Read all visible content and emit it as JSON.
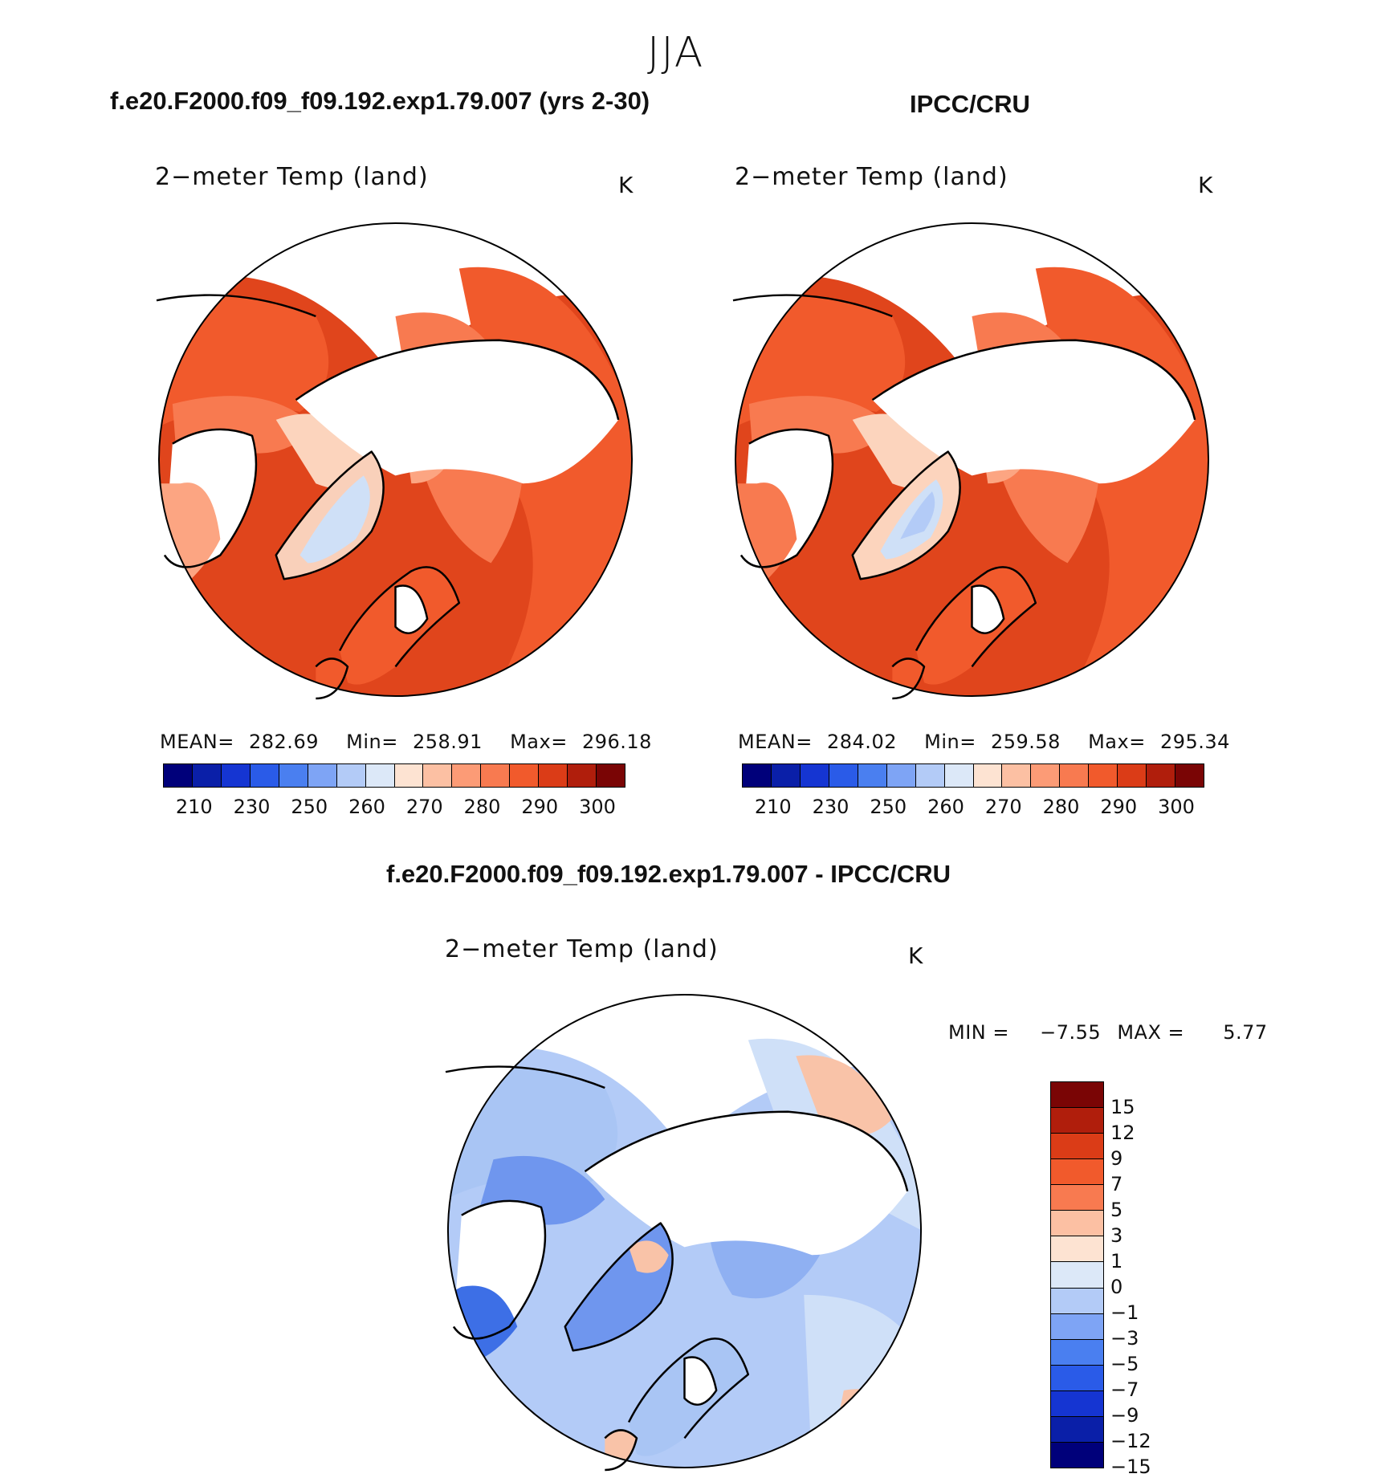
{
  "figure": {
    "season": "JJA"
  },
  "panels": [
    {
      "id": "model",
      "header": "f.e20.F2000.f09_f09.192.exp1.79.007 (yrs 2-30)",
      "title": "2−meter Temp (land)",
      "units": "K",
      "stats": {
        "mean_label": "MEAN=",
        "mean": "282.69",
        "min_label": "Min=",
        "min": "258.91",
        "max_label": "Max=",
        "max": "296.18"
      }
    },
    {
      "id": "obs",
      "header": "IPCC/CRU",
      "title": "2−meter Temp (land)",
      "units": "K",
      "stats": {
        "mean_label": "MEAN=",
        "mean": "284.02",
        "min_label": "Min=",
        "min": "259.58",
        "max_label": "Max=",
        "max": "295.34"
      }
    },
    {
      "id": "diff",
      "header": "f.e20.F2000.f09_f09.192.exp1.79.007 - IPCC/CRU",
      "title": "2−meter Temp (land)",
      "units": "K",
      "minmax": {
        "min_label": "MIN =",
        "min": "−7.55",
        "max_label": "MAX =",
        "max": "5.77"
      }
    }
  ],
  "colorbar_abs": {
    "colors": [
      "#00007a",
      "#0a1fa8",
      "#1535d2",
      "#2a5be8",
      "#4a7ff0",
      "#7ea4f5",
      "#b3cbf7",
      "#dce8f8",
      "#fde3d2",
      "#fcc0a3",
      "#fc9b76",
      "#f87a50",
      "#f15a2c",
      "#db3c17",
      "#b01e0c",
      "#7a0505"
    ],
    "tick_labels": [
      "210",
      "230",
      "250",
      "260",
      "270",
      "280",
      "290",
      "300"
    ]
  },
  "colorbar_diff": {
    "colors": [
      "#7a0505",
      "#b01e0c",
      "#db3c17",
      "#f15a2c",
      "#f87a50",
      "#fcc0a3",
      "#fde3d2",
      "#dce8f8",
      "#b3cbf7",
      "#7ea4f5",
      "#4a7ff0",
      "#2a5be8",
      "#1535d2",
      "#0a1fa8",
      "#00007a"
    ],
    "tick_labels": [
      "15",
      "12",
      "9",
      "7",
      "5",
      "3",
      "1",
      "0",
      "−1",
      "−3",
      "−5",
      "−7",
      "−9",
      "−12",
      "−15"
    ]
  },
  "map_colors": {
    "abs_warm_outer": "#e0451c",
    "abs_warm": "#f15a2c",
    "abs_mid": "#f87a50",
    "abs_cool": "#fca582",
    "abs_cold": "#fcd4bd",
    "ice": "#cfe0f7",
    "ice_core": "#b3cbf7",
    "diff_light": "#cfe0f8",
    "diff_mid": "#a9c5f4",
    "diff_strong": "#6f96ee",
    "diff_deep": "#3d6fe6",
    "diff_warm": "#f9c3a8"
  }
}
